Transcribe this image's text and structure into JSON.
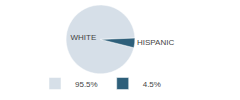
{
  "chart_data": {
    "type": "pie",
    "categories": [
      "WHITE",
      "HISPANIC"
    ],
    "values": [
      95.5,
      4.5
    ],
    "value_labels": [
      "95.5%",
      "4.5%"
    ],
    "colors": [
      "#d6dfe8",
      "#2e5f7a"
    ],
    "legend": "bottom"
  }
}
